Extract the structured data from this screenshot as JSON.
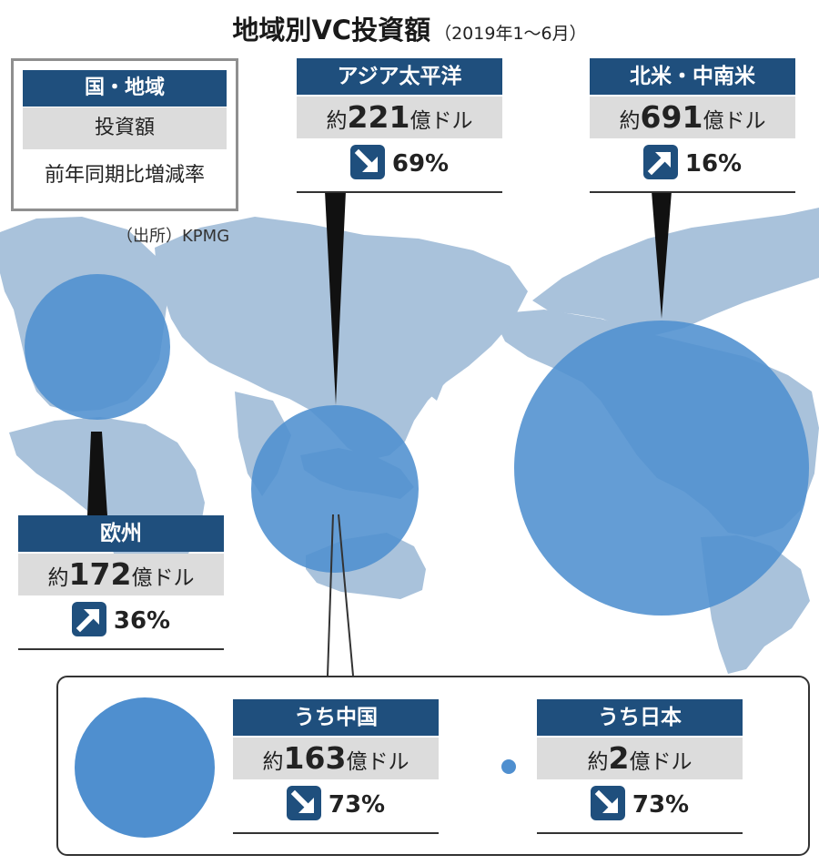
{
  "title": {
    "main": "地域別VC投資額",
    "period": "（2019年1〜6月）"
  },
  "legend": {
    "header": "国・地域",
    "amount": "投資額",
    "rate": "前年同期比増減率"
  },
  "source": "（出所）KPMG",
  "colors": {
    "header": "#1f4f7d",
    "bubble": "#4f8fcf",
    "land": "#a9c2db",
    "amount_bg": "#dcdcdc"
  },
  "regions": [
    {
      "id": "asia",
      "name": "アジア太平洋",
      "prefix": "約",
      "value": "221",
      "unit": "億ドル",
      "direction": "down",
      "direction_icon": "arrow-down-right-icon",
      "change": "69%"
    },
    {
      "id": "na",
      "name": "北米・中南米",
      "prefix": "約",
      "value": "691",
      "unit": "億ドル",
      "direction": "up",
      "direction_icon": "arrow-up-right-icon",
      "change": "16%"
    },
    {
      "id": "eu",
      "name": "欧州",
      "prefix": "約",
      "value": "172",
      "unit": "億ドル",
      "direction": "up",
      "direction_icon": "arrow-up-right-icon",
      "change": "36%"
    },
    {
      "id": "china",
      "name": "うち中国",
      "prefix": "約",
      "value": "163",
      "unit": "億ドル",
      "direction": "down",
      "direction_icon": "arrow-down-right-icon",
      "change": "73%"
    },
    {
      "id": "japan",
      "name": "うち日本",
      "prefix": "約",
      "value": "2",
      "unit": "億ドル",
      "direction": "down",
      "direction_icon": "arrow-down-right-icon",
      "change": "73%"
    }
  ]
}
